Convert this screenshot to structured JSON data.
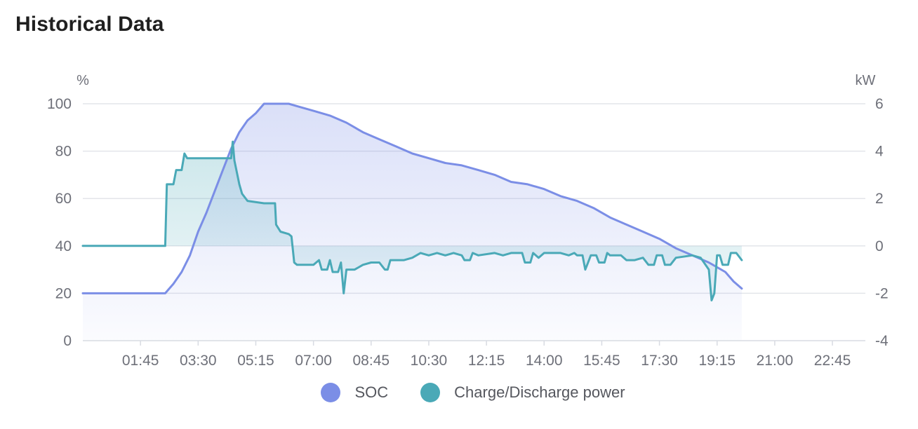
{
  "title": "Historical Data",
  "chart_data": {
    "type": "line",
    "x_ticks": [
      "01:45",
      "03:30",
      "05:15",
      "07:00",
      "08:45",
      "10:30",
      "12:15",
      "14:00",
      "15:45",
      "17:30",
      "19:15",
      "21:00",
      "22:45"
    ],
    "x_range": [
      "00:00",
      "23:45"
    ],
    "y_left": {
      "unit": "%",
      "range": [
        0,
        100
      ],
      "ticks": [
        "0",
        "20",
        "40",
        "60",
        "80",
        "100"
      ]
    },
    "y_right": {
      "unit": "kW",
      "range": [
        -4,
        6
      ],
      "ticks": [
        "-4",
        "-2",
        "0",
        "2",
        "4",
        "6"
      ]
    },
    "grid": true,
    "legend_position": "bottom-center",
    "series": [
      {
        "name": "SOC",
        "axis": "left",
        "color": "#7b8ee6",
        "area": true,
        "points": [
          [
            "00:00",
            20
          ],
          [
            "02:30",
            20
          ],
          [
            "02:45",
            24
          ],
          [
            "03:00",
            29
          ],
          [
            "03:15",
            36
          ],
          [
            "03:30",
            46
          ],
          [
            "03:45",
            54
          ],
          [
            "04:00",
            63
          ],
          [
            "04:15",
            72
          ],
          [
            "04:30",
            81
          ],
          [
            "04:45",
            88
          ],
          [
            "05:00",
            93
          ],
          [
            "05:15",
            96
          ],
          [
            "05:30",
            100
          ],
          [
            "06:15",
            100
          ],
          [
            "06:30",
            99
          ],
          [
            "07:00",
            97
          ],
          [
            "07:30",
            95
          ],
          [
            "08:00",
            92
          ],
          [
            "08:30",
            88
          ],
          [
            "09:00",
            85
          ],
          [
            "09:30",
            82
          ],
          [
            "10:00",
            79
          ],
          [
            "10:30",
            77
          ],
          [
            "11:00",
            75
          ],
          [
            "11:30",
            74
          ],
          [
            "12:00",
            72
          ],
          [
            "12:30",
            70
          ],
          [
            "13:00",
            67
          ],
          [
            "13:30",
            66
          ],
          [
            "14:00",
            64
          ],
          [
            "14:30",
            61
          ],
          [
            "15:00",
            59
          ],
          [
            "15:30",
            56
          ],
          [
            "16:00",
            52
          ],
          [
            "16:30",
            49
          ],
          [
            "17:00",
            46
          ],
          [
            "17:30",
            43
          ],
          [
            "18:00",
            39
          ],
          [
            "18:30",
            36
          ],
          [
            "19:00",
            33
          ],
          [
            "19:30",
            29
          ],
          [
            "19:45",
            25
          ],
          [
            "20:00",
            22
          ]
        ]
      },
      {
        "name": "Charge/Discharge power",
        "axis": "right",
        "color": "#4aa9b7",
        "area": true,
        "points": [
          [
            "00:00",
            0
          ],
          [
            "02:30",
            0
          ],
          [
            "02:33",
            2.6
          ],
          [
            "02:45",
            2.6
          ],
          [
            "02:50",
            3.2
          ],
          [
            "03:00",
            3.2
          ],
          [
            "03:05",
            3.9
          ],
          [
            "03:10",
            3.7
          ],
          [
            "04:30",
            3.7
          ],
          [
            "04:33",
            4.4
          ],
          [
            "04:36",
            3.6
          ],
          [
            "04:45",
            2.6
          ],
          [
            "04:50",
            2.2
          ],
          [
            "05:00",
            1.9
          ],
          [
            "05:30",
            1.8
          ],
          [
            "05:50",
            1.8
          ],
          [
            "05:52",
            0.9
          ],
          [
            "06:00",
            0.6
          ],
          [
            "06:15",
            0.5
          ],
          [
            "06:20",
            0.4
          ],
          [
            "06:25",
            -0.7
          ],
          [
            "06:30",
            -0.8
          ],
          [
            "07:00",
            -0.8
          ],
          [
            "07:10",
            -0.6
          ],
          [
            "07:15",
            -1.0
          ],
          [
            "07:25",
            -1.0
          ],
          [
            "07:30",
            -0.6
          ],
          [
            "07:35",
            -1.1
          ],
          [
            "07:45",
            -1.1
          ],
          [
            "07:50",
            -0.7
          ],
          [
            "07:55",
            -2.0
          ],
          [
            "08:00",
            -1.0
          ],
          [
            "08:15",
            -1.0
          ],
          [
            "08:30",
            -0.8
          ],
          [
            "08:45",
            -0.7
          ],
          [
            "09:00",
            -0.7
          ],
          [
            "09:10",
            -1.0
          ],
          [
            "09:15",
            -1.0
          ],
          [
            "09:20",
            -0.6
          ],
          [
            "09:30",
            -0.6
          ],
          [
            "09:45",
            -0.6
          ],
          [
            "10:00",
            -0.5
          ],
          [
            "10:15",
            -0.3
          ],
          [
            "10:30",
            -0.4
          ],
          [
            "10:45",
            -0.3
          ],
          [
            "11:00",
            -0.4
          ],
          [
            "11:15",
            -0.3
          ],
          [
            "11:30",
            -0.4
          ],
          [
            "11:35",
            -0.6
          ],
          [
            "11:45",
            -0.6
          ],
          [
            "11:50",
            -0.3
          ],
          [
            "12:00",
            -0.4
          ],
          [
            "12:30",
            -0.3
          ],
          [
            "12:45",
            -0.4
          ],
          [
            "13:00",
            -0.3
          ],
          [
            "13:20",
            -0.3
          ],
          [
            "13:25",
            -0.7
          ],
          [
            "13:35",
            -0.7
          ],
          [
            "13:40",
            -0.3
          ],
          [
            "13:50",
            -0.5
          ],
          [
            "14:00",
            -0.3
          ],
          [
            "14:30",
            -0.3
          ],
          [
            "14:45",
            -0.4
          ],
          [
            "14:55",
            -0.3
          ],
          [
            "15:00",
            -0.4
          ],
          [
            "15:10",
            -0.4
          ],
          [
            "15:15",
            -1.0
          ],
          [
            "15:20",
            -0.7
          ],
          [
            "15:25",
            -0.4
          ],
          [
            "15:35",
            -0.4
          ],
          [
            "15:40",
            -0.7
          ],
          [
            "15:50",
            -0.7
          ],
          [
            "15:55",
            -0.3
          ],
          [
            "16:00",
            -0.4
          ],
          [
            "16:20",
            -0.4
          ],
          [
            "16:30",
            -0.6
          ],
          [
            "16:45",
            -0.6
          ],
          [
            "17:00",
            -0.5
          ],
          [
            "17:10",
            -0.8
          ],
          [
            "17:20",
            -0.8
          ],
          [
            "17:25",
            -0.4
          ],
          [
            "17:35",
            -0.4
          ],
          [
            "17:40",
            -0.8
          ],
          [
            "17:50",
            -0.8
          ],
          [
            "18:00",
            -0.5
          ],
          [
            "18:30",
            -0.4
          ],
          [
            "18:45",
            -0.5
          ],
          [
            "19:00",
            -1.0
          ],
          [
            "19:05",
            -2.3
          ],
          [
            "19:10",
            -2.0
          ],
          [
            "19:15",
            -0.4
          ],
          [
            "19:20",
            -0.4
          ],
          [
            "19:25",
            -0.8
          ],
          [
            "19:35",
            -0.8
          ],
          [
            "19:40",
            -0.3
          ],
          [
            "19:50",
            -0.3
          ],
          [
            "20:00",
            -0.6
          ]
        ]
      }
    ]
  }
}
